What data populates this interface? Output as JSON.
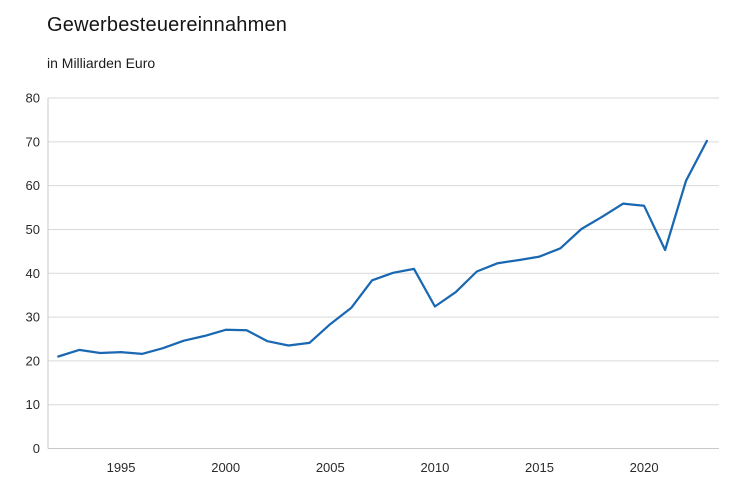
{
  "header": {
    "title": "Gewerbesteuereinnahmen",
    "subtitle": "in Milliarden Euro"
  },
  "colors": {
    "line": "#1a68b2",
    "grid": "#d9d9d9",
    "axis_line": "#c9c9c9",
    "tick_text": "#2b2b2b",
    "background": "#ffffff"
  },
  "chart_data": {
    "type": "line",
    "title": "Gewerbesteuereinnahmen",
    "subtitle": "in Milliarden Euro",
    "series_name": "Gewerbesteuereinnahmen",
    "x": [
      1992,
      1993,
      1994,
      1995,
      1996,
      1997,
      1998,
      1999,
      2000,
      2001,
      2002,
      2003,
      2004,
      2005,
      2006,
      2007,
      2008,
      2009,
      2010,
      2011,
      2012,
      2013,
      2014,
      2015,
      2016,
      2017,
      2018,
      2019,
      2020,
      2021,
      2022,
      2023
    ],
    "values": [
      21.0,
      22.5,
      21.8,
      22.0,
      21.6,
      22.9,
      24.6,
      25.7,
      27.1,
      27.0,
      24.5,
      23.5,
      24.1,
      28.4,
      32.1,
      38.4,
      40.1,
      41.0,
      32.4,
      35.7,
      40.4,
      42.3,
      43.0,
      43.8,
      45.7,
      50.1,
      52.9,
      55.9,
      55.4,
      45.3,
      61.1,
      70.2
    ],
    "ylim": [
      0,
      80
    ],
    "yticks": [
      0,
      10,
      20,
      30,
      40,
      50,
      60,
      70,
      80
    ],
    "xticks": [
      1995,
      2000,
      2005,
      2010,
      2015,
      2020
    ],
    "grid": "horizontal",
    "legend": "none"
  }
}
